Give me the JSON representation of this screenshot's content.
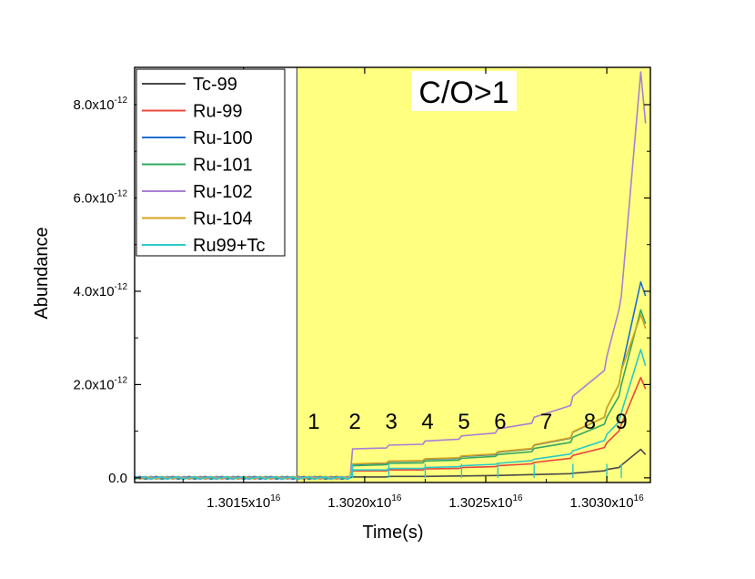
{
  "chart_data": {
    "type": "line",
    "title": "",
    "xlabel": "Time(s)",
    "ylabel": "Abundance",
    "xlim": [
      1.30105e+16,
      1.30318e+16
    ],
    "ylim": [
      -1e-13,
      8.8e-12
    ],
    "x_ticks": [
      {
        "value": 1.3015e+16,
        "mantissa": "1.3015x10",
        "exp": "16"
      },
      {
        "value": 1.302e+16,
        "mantissa": "1.3020x10",
        "exp": "16"
      },
      {
        "value": 1.3025e+16,
        "mantissa": "1.3025x10",
        "exp": "16"
      },
      {
        "value": 1.303e+16,
        "mantissa": "1.3030x10",
        "exp": "16"
      }
    ],
    "y_ticks": [
      {
        "value": 0,
        "mantissa": "0.0",
        "exp": ""
      },
      {
        "value": 2e-12,
        "mantissa": "2.0x10",
        "exp": "-12"
      },
      {
        "value": 4e-12,
        "mantissa": "4.0x10",
        "exp": "-12"
      },
      {
        "value": 6e-12,
        "mantissa": "6.0x10",
        "exp": "-12"
      },
      {
        "value": 8e-12,
        "mantissa": "8.0x10",
        "exp": "-12"
      }
    ],
    "grid": false,
    "legend_position": "top-left",
    "shaded_region": {
      "x_start": 1.30172e+16,
      "x_end": 1.30318e+16,
      "color": "#ffff80",
      "label": "C/O>1"
    },
    "annotations": [
      {
        "text": "1",
        "x": 1.30179e+16,
        "y": 1.05e-12
      },
      {
        "text": "2",
        "x": 1.30196e+16,
        "y": 1.05e-12
      },
      {
        "text": "3",
        "x": 1.30211e+16,
        "y": 1.05e-12
      },
      {
        "text": "4",
        "x": 1.30226e+16,
        "y": 1.05e-12
      },
      {
        "text": "5",
        "x": 1.30241e+16,
        "y": 1.05e-12
      },
      {
        "text": "6",
        "x": 1.30256e+16,
        "y": 1.05e-12
      },
      {
        "text": "7",
        "x": 1.30275e+16,
        "y": 1.05e-12
      },
      {
        "text": "8",
        "x": 1.30293e+16,
        "y": 1.05e-12
      },
      {
        "text": "9",
        "x": 1.30306e+16,
        "y": 1.05e-12
      }
    ],
    "pulse_x": [
      1.30195e+16,
      1.3021e+16,
      1.30225e+16,
      1.3024e+16,
      1.30255e+16,
      1.3027e+16,
      1.30286e+16,
      1.303e+16,
      1.30306e+16
    ],
    "x": [
      1.30105e+16,
      1.30172e+16,
      1.30194e+16,
      1.30195e+16,
      1.30209e+16,
      1.3021e+16,
      1.30224e+16,
      1.30225e+16,
      1.30239e+16,
      1.3024e+16,
      1.30254e+16,
      1.30255e+16,
      1.30269e+16,
      1.3027e+16,
      1.30285e+16,
      1.30286e+16,
      1.30299e+16,
      1.303e+16,
      1.30305e+16,
      1.30306e+16,
      1.30314e+16,
      1.30316e+16
    ],
    "series": [
      {
        "name": "Tc-99",
        "color": "#4a4a4a",
        "values": [
          0.0,
          0.0,
          0.0,
          2e-14,
          2e-14,
          3e-14,
          3e-14,
          3e-14,
          4e-14,
          4e-14,
          5e-14,
          5e-14,
          7e-14,
          7e-14,
          9e-14,
          1e-13,
          1.5e-13,
          1.8e-13,
          2.2e-13,
          2.7e-13,
          6.1e-13,
          5e-13
        ]
      },
      {
        "name": "Ru-99",
        "color": "#e8473a",
        "values": [
          0.0,
          0.0,
          0.0,
          1.5e-13,
          1.5e-13,
          1.7e-13,
          1.7e-13,
          1.9e-13,
          2e-13,
          2.2e-13,
          2.4e-13,
          2.6e-13,
          3e-13,
          3.3e-13,
          4.2e-13,
          4.8e-13,
          6.5e-13,
          7.5e-13,
          1e-12,
          1.15e-12,
          2.15e-12,
          1.9e-12
        ]
      },
      {
        "name": "Ru-100",
        "color": "#1f6fd1",
        "values": [
          0.0,
          0.0,
          0.0,
          2.9e-13,
          3.1e-13,
          3.5e-13,
          3.6e-13,
          4e-13,
          4.2e-13,
          4.6e-13,
          5e-13,
          5.5e-13,
          6.2e-13,
          7e-13,
          8.5e-13,
          9.8e-13,
          1.3e-12,
          1.5e-12,
          2e-12,
          2.3e-12,
          4.2e-12,
          3.9e-12
        ]
      },
      {
        "name": "Ru-101",
        "color": "#33a860",
        "values": [
          0.0,
          0.0,
          0.0,
          2.6e-13,
          2.8e-13,
          3.1e-13,
          3.2e-13,
          3.6e-13,
          3.8e-13,
          4.2e-13,
          4.6e-13,
          5e-13,
          5.6e-13,
          6.3e-13,
          7.6e-13,
          8.7e-13,
          1.15e-12,
          1.3e-12,
          1.75e-12,
          2e-12,
          3.6e-12,
          3.3e-12
        ]
      },
      {
        "name": "Ru-102",
        "color": "#a97fd6",
        "values": [
          0.0,
          0.0,
          0.0,
          6.2e-13,
          6.4e-13,
          7e-13,
          7.2e-13,
          7.9e-13,
          8.3e-13,
          9e-13,
          9.6e-13,
          1.05e-12,
          1.17e-12,
          1.3e-12,
          1.55e-12,
          1.75e-12,
          2.3e-12,
          2.6e-12,
          3.6e-12,
          3.9e-12,
          8.7e-12,
          7.6e-12
        ]
      },
      {
        "name": "Ru-104",
        "color": "#d4a21c",
        "values": [
          0.0,
          0.0,
          0.0,
          3e-13,
          3.2e-13,
          3.6e-13,
          3.7e-13,
          4.1e-13,
          4.3e-13,
          4.7e-13,
          5.1e-13,
          5.6e-13,
          6.3e-13,
          7.1e-13,
          8.6e-13,
          9.9e-13,
          1.3e-12,
          1.5e-12,
          2e-12,
          2.3e-12,
          3.5e-12,
          3.2e-12
        ]
      },
      {
        "name": "Ru99+Tc",
        "color": "#2cc9c9",
        "values": [
          0.0,
          0.0,
          0.0,
          1.7e-13,
          1.7e-13,
          2e-13,
          2e-13,
          2.2e-13,
          2.4e-13,
          2.6e-13,
          2.9e-13,
          3.1e-13,
          3.7e-13,
          4e-13,
          5.1e-13,
          5.8e-13,
          8e-13,
          9.3e-13,
          1.2e-12,
          1.4e-12,
          2.75e-12,
          2.4e-12
        ]
      }
    ]
  }
}
